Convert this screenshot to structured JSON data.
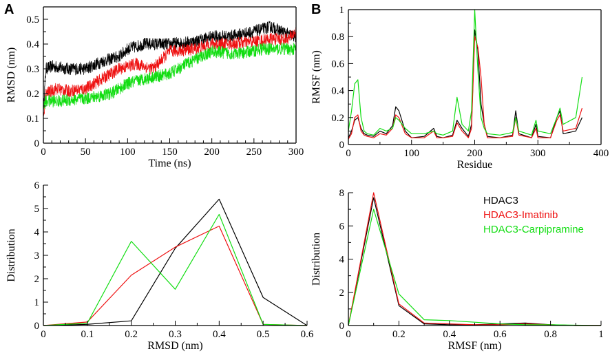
{
  "colors": {
    "HDAC3": "#000000",
    "HDAC3-Imatinib": "#ee1111",
    "HDAC3-Carpipramine": "#11dd11"
  },
  "legend": [
    "HDAC3",
    "HDAC3-Imatinib",
    "HDAC3-Carpipramine"
  ],
  "chart_data": [
    {
      "id": "rmsd-time",
      "panel": "A",
      "type": "line",
      "xlabel": "Time (ns)",
      "ylabel": "RMSD (nm)",
      "xlim": [
        0,
        300
      ],
      "ylim": [
        0,
        0.55
      ],
      "xticks": [
        0,
        50,
        100,
        150,
        200,
        250,
        300
      ],
      "yticks": [
        0,
        0.1,
        0.2,
        0.3,
        0.4,
        0.5
      ],
      "noisy": true,
      "series": [
        {
          "name": "HDAC3",
          "x": [
            0,
            3,
            10,
            30,
            50,
            70,
            90,
            100,
            120,
            150,
            180,
            200,
            220,
            250,
            270,
            290,
            300
          ],
          "y": [
            0.13,
            0.3,
            0.31,
            0.3,
            0.3,
            0.33,
            0.35,
            0.38,
            0.4,
            0.4,
            0.41,
            0.43,
            0.43,
            0.45,
            0.47,
            0.44,
            0.43
          ]
        },
        {
          "name": "HDAC3-Imatinib",
          "x": [
            0,
            3,
            15,
            30,
            50,
            70,
            90,
            110,
            130,
            150,
            180,
            200,
            220,
            250,
            270,
            290,
            300
          ],
          "y": [
            0.1,
            0.2,
            0.22,
            0.21,
            0.22,
            0.26,
            0.3,
            0.32,
            0.3,
            0.37,
            0.38,
            0.4,
            0.4,
            0.41,
            0.42,
            0.42,
            0.45
          ]
        },
        {
          "name": "HDAC3-Carpipramine",
          "x": [
            0,
            3,
            20,
            50,
            80,
            100,
            120,
            150,
            170,
            200,
            230,
            260,
            280,
            300
          ],
          "y": [
            0.15,
            0.17,
            0.17,
            0.18,
            0.2,
            0.24,
            0.26,
            0.28,
            0.32,
            0.37,
            0.36,
            0.38,
            0.38,
            0.38
          ]
        }
      ]
    },
    {
      "id": "rmsf-residue",
      "panel": "B",
      "type": "line",
      "xlabel": "Residue",
      "ylabel": "RMSF (nm)",
      "xlim": [
        0,
        400
      ],
      "ylim": [
        0,
        1
      ],
      "xticks": [
        0,
        100,
        200,
        300,
        400
      ],
      "yticks": [
        0,
        0.2,
        0.4,
        0.6,
        0.8,
        1
      ],
      "yticklabels": [
        "0",
        "0.2",
        "0.4",
        "0.6",
        "0.8",
        "1"
      ],
      "series": [
        {
          "name": "HDAC3",
          "x": [
            0,
            5,
            10,
            15,
            20,
            25,
            30,
            40,
            50,
            60,
            70,
            75,
            80,
            90,
            100,
            120,
            135,
            140,
            150,
            165,
            172,
            180,
            190,
            195,
            200,
            205,
            210,
            215,
            220,
            240,
            260,
            265,
            270,
            290,
            297,
            300,
            320,
            330,
            335,
            340,
            360,
            370
          ],
          "y": [
            0.05,
            0.1,
            0.18,
            0.2,
            0.12,
            0.08,
            0.07,
            0.06,
            0.1,
            0.08,
            0.14,
            0.28,
            0.25,
            0.1,
            0.05,
            0.06,
            0.12,
            0.06,
            0.05,
            0.07,
            0.18,
            0.12,
            0.06,
            0.15,
            0.85,
            0.7,
            0.3,
            0.15,
            0.06,
            0.05,
            0.07,
            0.25,
            0.08,
            0.05,
            0.15,
            0.06,
            0.05,
            0.2,
            0.25,
            0.08,
            0.1,
            0.2
          ]
        },
        {
          "name": "HDAC3-Imatinib",
          "x": [
            0,
            5,
            10,
            15,
            20,
            25,
            30,
            40,
            50,
            60,
            70,
            75,
            80,
            90,
            100,
            120,
            135,
            140,
            150,
            165,
            172,
            180,
            190,
            195,
            200,
            205,
            210,
            215,
            220,
            240,
            260,
            265,
            270,
            290,
            297,
            300,
            320,
            330,
            335,
            340,
            360,
            370
          ],
          "y": [
            0.04,
            0.08,
            0.2,
            0.22,
            0.1,
            0.07,
            0.06,
            0.05,
            0.08,
            0.07,
            0.12,
            0.22,
            0.2,
            0.08,
            0.05,
            0.05,
            0.1,
            0.05,
            0.05,
            0.06,
            0.16,
            0.1,
            0.05,
            0.12,
            0.8,
            0.72,
            0.5,
            0.15,
            0.05,
            0.05,
            0.06,
            0.2,
            0.07,
            0.05,
            0.12,
            0.05,
            0.05,
            0.18,
            0.22,
            0.1,
            0.12,
            0.27
          ]
        },
        {
          "name": "HDAC3-Carpipramine",
          "x": [
            0,
            5,
            10,
            15,
            20,
            25,
            30,
            40,
            50,
            60,
            70,
            75,
            80,
            90,
            100,
            120,
            135,
            140,
            150,
            165,
            172,
            180,
            190,
            195,
            200,
            205,
            210,
            215,
            220,
            240,
            260,
            265,
            270,
            290,
            297,
            300,
            320,
            330,
            335,
            340,
            360,
            370
          ],
          "y": [
            0.1,
            0.25,
            0.45,
            0.48,
            0.2,
            0.1,
            0.08,
            0.07,
            0.12,
            0.1,
            0.12,
            0.2,
            0.18,
            0.12,
            0.08,
            0.08,
            0.1,
            0.08,
            0.07,
            0.1,
            0.35,
            0.15,
            0.1,
            0.25,
            1.0,
            0.55,
            0.2,
            0.12,
            0.08,
            0.07,
            0.09,
            0.2,
            0.1,
            0.07,
            0.18,
            0.1,
            0.08,
            0.2,
            0.27,
            0.15,
            0.2,
            0.5
          ]
        }
      ]
    },
    {
      "id": "rmsd-distribution",
      "type": "line",
      "xlabel": "RMSD (nm)",
      "ylabel": "Distribution",
      "xlim": [
        0,
        0.6
      ],
      "ylim": [
        0,
        6
      ],
      "xticks": [
        0,
        0.1,
        0.2,
        0.3,
        0.4,
        0.5,
        0.6
      ],
      "yticks": [
        0,
        1,
        2,
        3,
        4,
        5,
        6
      ],
      "series": [
        {
          "name": "HDAC3",
          "x": [
            0,
            0.1,
            0.2,
            0.3,
            0.4,
            0.5,
            0.6
          ],
          "y": [
            0,
            0.05,
            0.2,
            3.3,
            5.4,
            1.2,
            0
          ]
        },
        {
          "name": "HDAC3-Imatinib",
          "x": [
            0,
            0.1,
            0.2,
            0.3,
            0.4,
            0.5,
            0.6
          ],
          "y": [
            0,
            0.15,
            2.15,
            3.35,
            4.25,
            0.05,
            0
          ]
        },
        {
          "name": "HDAC3-Carpipramine",
          "x": [
            0,
            0.1,
            0.2,
            0.3,
            0.4,
            0.5,
            0.6
          ],
          "y": [
            0,
            0.1,
            3.6,
            1.55,
            4.75,
            0.05,
            0
          ]
        }
      ]
    },
    {
      "id": "rmsf-distribution",
      "type": "line",
      "xlabel": "RMSF (nm)",
      "ylabel": "Distribution",
      "xlim": [
        0,
        1
      ],
      "ylim": [
        0,
        8
      ],
      "xticks": [
        0,
        0.2,
        0.4,
        0.6,
        0.8,
        1
      ],
      "xticklabels": [
        "0",
        "0.2",
        "0.4",
        "0.6",
        "0.8",
        "1"
      ],
      "yticks": [
        0,
        2,
        4,
        6,
        8
      ],
      "series": [
        {
          "name": "HDAC3",
          "x": [
            0,
            0.1,
            0.2,
            0.3,
            0.4,
            0.5,
            0.6,
            0.7,
            0.8,
            0.9,
            1.0
          ],
          "y": [
            0,
            7.7,
            1.2,
            0.1,
            0.05,
            0.05,
            0.1,
            0.15,
            0.05,
            0,
            0
          ]
        },
        {
          "name": "HDAC3-Imatinib",
          "x": [
            0,
            0.1,
            0.2,
            0.3,
            0.4,
            0.5,
            0.6,
            0.7,
            0.8,
            0.9,
            1.0
          ],
          "y": [
            0,
            8.0,
            1.3,
            0.15,
            0.1,
            0.05,
            0.05,
            0.1,
            0.05,
            0,
            0
          ]
        },
        {
          "name": "HDAC3-Carpipramine",
          "x": [
            0,
            0.1,
            0.2,
            0.3,
            0.4,
            0.5,
            0.6,
            0.7,
            0.8,
            0.9,
            1.0
          ],
          "y": [
            0,
            7.0,
            1.9,
            0.35,
            0.3,
            0.2,
            0.1,
            0.05,
            0.05,
            0.02,
            0
          ]
        }
      ]
    }
  ]
}
